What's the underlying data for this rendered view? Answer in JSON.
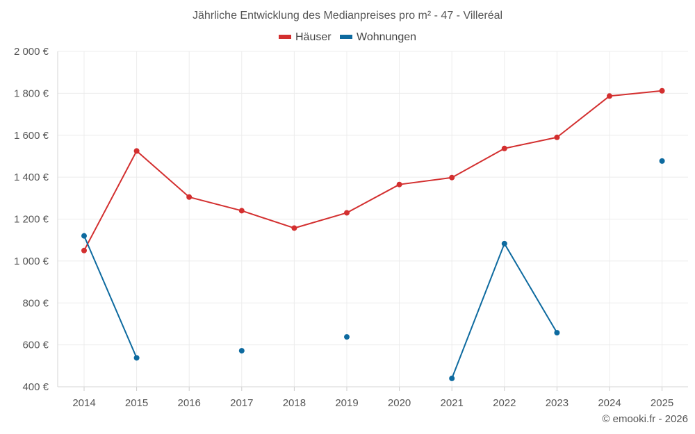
{
  "chart_data": {
    "type": "line",
    "title": "Jährliche Entwicklung des Medianpreises pro m² - 47 - Villeréal",
    "categories": [
      "2014",
      "2015",
      "2016",
      "2017",
      "2018",
      "2019",
      "2020",
      "2021",
      "2022",
      "2023",
      "2024",
      "2025"
    ],
    "y_ticks": [
      "400 €",
      "600 €",
      "800 €",
      "1 000 €",
      "1 200 €",
      "1 400 €",
      "1 600 €",
      "1 800 €",
      "2 000 €"
    ],
    "ylim": [
      400,
      2000
    ],
    "y_step": 200,
    "grid": true,
    "legend_position": "top-center",
    "series": [
      {
        "name": "Häuser",
        "color": "#d32f2f",
        "values": [
          1050,
          1525,
          1305,
          1240,
          1157,
          1230,
          1365,
          1398,
          1537,
          1590,
          1787,
          1812
        ]
      },
      {
        "name": "Wohnungen",
        "color": "#0d6a9f",
        "values": [
          1120,
          538,
          null,
          572,
          null,
          638,
          null,
          440,
          1083,
          658,
          null,
          1477
        ]
      }
    ]
  },
  "credit": "© emooki.fr - 2026"
}
